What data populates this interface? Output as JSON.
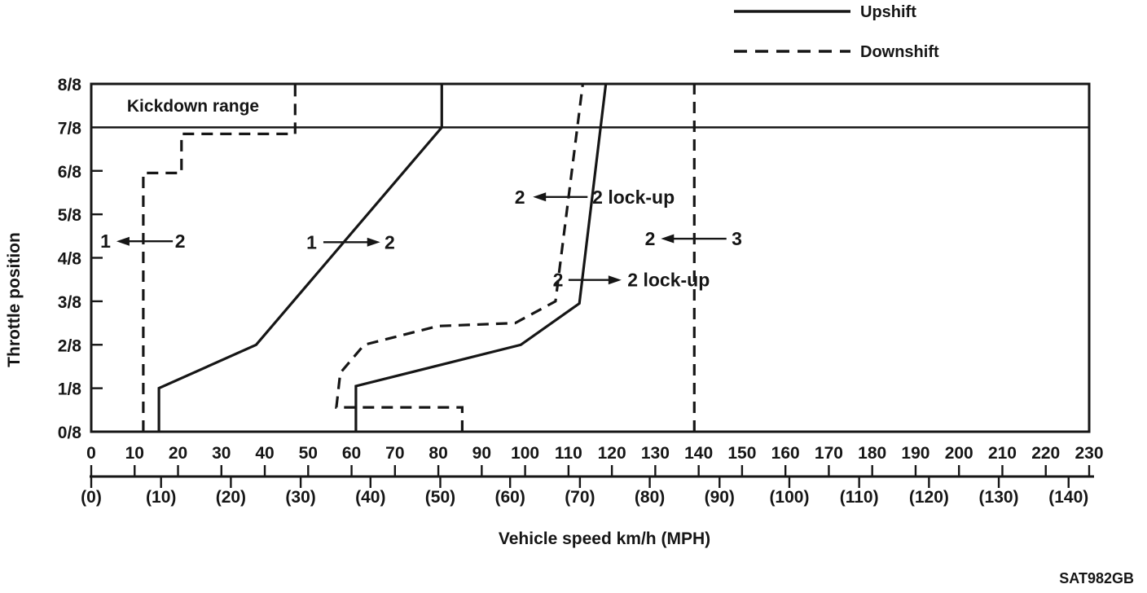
{
  "page": {
    "colors": {
      "ink": "#161616",
      "background": "#ffffff"
    }
  },
  "legend": {
    "items": [
      {
        "name": "upshift",
        "label": "Upshift",
        "style": "solid"
      },
      {
        "name": "downshift",
        "label": "Downshift",
        "style": "dashed"
      }
    ]
  },
  "footer": {
    "figure_code": "SAT982GB"
  },
  "chart_data": {
    "type": "line",
    "xlabel": "Vehicle speed km/h (MPH)",
    "ylabel": "Throttle position",
    "xlim_kmh": [
      0,
      230
    ],
    "ylim_eighths": [
      0,
      8
    ],
    "grid": "off",
    "legend_position": "top-right",
    "x_ticks_kmh": {
      "values": [
        0,
        10,
        20,
        30,
        40,
        50,
        60,
        70,
        80,
        90,
        100,
        110,
        120,
        130,
        140,
        150,
        160,
        170,
        180,
        190,
        200,
        210,
        220,
        230
      ],
      "labels": [
        "0",
        "10",
        "20",
        "30",
        "40",
        "50",
        "60",
        "70",
        "80",
        "90",
        "100",
        "110",
        "120",
        "130",
        "140",
        "150",
        "160",
        "170",
        "180",
        "190",
        "200",
        "210",
        "220",
        "230"
      ]
    },
    "x_ticks_mph": {
      "kmh_per_mph": 1.609,
      "values": [
        0,
        10,
        20,
        30,
        40,
        50,
        60,
        70,
        80,
        90,
        100,
        110,
        120,
        130,
        140
      ],
      "labels": [
        "(0)",
        "(10)",
        "(20)",
        "(30)",
        "(40)",
        "(50)",
        "(60)",
        "(70)",
        "(80)",
        "(90)",
        "(100)",
        "(110)",
        "(120)",
        "(130)",
        "(140)"
      ]
    },
    "y_ticks": {
      "values": [
        0,
        1,
        2,
        3,
        4,
        5,
        6,
        7,
        8
      ],
      "labels": [
        "0/8",
        "1/8",
        "2/8",
        "3/8",
        "4/8",
        "5/8",
        "6/8",
        "7/8",
        "8/8"
      ]
    },
    "kickdown": {
      "label": "Kickdown range",
      "boundary_eighths": 7,
      "label_kmh": 23.5,
      "label_eighths": 7.45
    },
    "series": [
      {
        "name": "downshift-2-to-1",
        "shift": "2 to 1 downshift",
        "style": "dashed",
        "points_kmh_eighths": [
          [
            12,
            0
          ],
          [
            12,
            5.95
          ],
          [
            20.8,
            5.95
          ],
          [
            20.8,
            6.85
          ],
          [
            47,
            6.85
          ],
          [
            47,
            8
          ]
        ]
      },
      {
        "name": "upshift-1-to-2",
        "shift": "1 to 2 upshift",
        "style": "solid",
        "points_kmh_eighths": [
          [
            15.6,
            0
          ],
          [
            15.6,
            1
          ],
          [
            38,
            2
          ],
          [
            80.8,
            7
          ],
          [
            80.8,
            8
          ]
        ]
      },
      {
        "name": "upshift-2-to-2-lockup",
        "shift": "2 to 2 lock-up engage",
        "style": "solid",
        "points_kmh_eighths": [
          [
            61,
            0
          ],
          [
            61,
            1.05
          ],
          [
            99,
            2
          ],
          [
            112.5,
            2.95
          ],
          [
            118.6,
            8
          ]
        ]
      },
      {
        "name": "downshift-2-lockup-to-2",
        "shift": "2 lock-up release",
        "style": "dashed",
        "points_kmh_eighths": [
          [
            85.5,
            0
          ],
          [
            85.5,
            0.56
          ],
          [
            56.5,
            0.56
          ],
          [
            57.4,
            1.35
          ],
          [
            62.9,
            2
          ],
          [
            79.9,
            2.43
          ],
          [
            97.7,
            2.5
          ],
          [
            107,
            3
          ],
          [
            113.3,
            8
          ]
        ]
      },
      {
        "name": "downshift-3-to-2",
        "shift": "3 to 2 downshift",
        "style": "dashed",
        "points_kmh_eighths": [
          [
            139,
            0
          ],
          [
            139,
            8
          ]
        ]
      }
    ],
    "annotations": [
      {
        "name": "label-2-to-1",
        "left": "1",
        "right": "2",
        "dir": "left",
        "y_eighths": 4.38,
        "left_x": 4.5,
        "arrow_kmh": [
          5.8,
          18.8
        ],
        "right_x": 19.3
      },
      {
        "name": "label-1-to-2",
        "left": "1",
        "right": "2",
        "dir": "right",
        "y_eighths": 4.36,
        "left_x": 52.0,
        "arrow_kmh": [
          53.5,
          66.6
        ],
        "right_x": 67.6
      },
      {
        "name": "label-2lockup-to-2",
        "left": "2",
        "right": "2 lock-up",
        "dir": "left",
        "y_eighths": 5.4,
        "left_x": 100.0,
        "arrow_kmh": [
          101.8,
          114.4
        ],
        "right_x": 115.5
      },
      {
        "name": "label-3-to-2",
        "left": "2",
        "right": "3",
        "dir": "left",
        "y_eighths": 4.44,
        "left_x": 130.0,
        "arrow_kmh": [
          131.3,
          146.4
        ],
        "right_x": 147.6
      },
      {
        "name": "label-2-to-2lockup",
        "left": "2",
        "right": "2 lock-up",
        "dir": "right",
        "y_eighths": 3.49,
        "left_x": 108.8,
        "arrow_kmh": [
          110.0,
          122.2
        ],
        "right_x": 123.6
      }
    ]
  }
}
